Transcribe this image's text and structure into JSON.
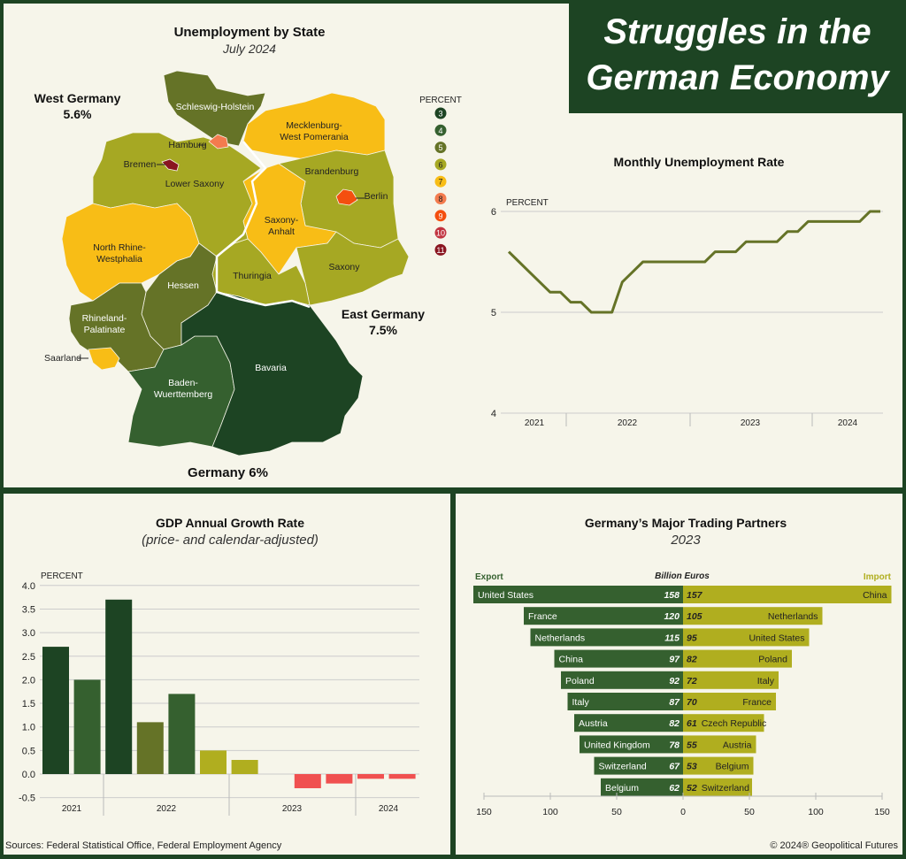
{
  "header": {
    "title_line1": "Struggles in the",
    "title_line2": "German Economy"
  },
  "map": {
    "title": "Unemployment by State",
    "subtitle": "July 2024",
    "legend_title": "PERCENT",
    "legend": [
      {
        "v": "3",
        "c": "#1d4423"
      },
      {
        "v": "4",
        "c": "#35602f"
      },
      {
        "v": "5",
        "c": "#657327"
      },
      {
        "v": "6",
        "c": "#a6a823"
      },
      {
        "v": "7",
        "c": "#f8bd16"
      },
      {
        "v": "8",
        "c": "#f37b4e"
      },
      {
        "v": "9",
        "c": "#f44f0f"
      },
      {
        "v": "10",
        "c": "#c1333f"
      },
      {
        "v": "11",
        "c": "#8a1520"
      }
    ],
    "west_label": "West Germany",
    "west_value": "5.6%",
    "east_label": "East Germany",
    "east_value": "7.5%",
    "total": "Germany 6%",
    "states": [
      {
        "name": "Schleswig-Holstein",
        "level": 5
      },
      {
        "name": "Mecklenburg-West Pomerania",
        "level": 7
      },
      {
        "name": "Brandenburg",
        "level": 6
      },
      {
        "name": "Berlin",
        "level": 9
      },
      {
        "name": "Saxony-Anhalt",
        "level": 7
      },
      {
        "name": "Saxony",
        "level": 6
      },
      {
        "name": "Thuringia",
        "level": 6
      },
      {
        "name": "Lower Saxony",
        "level": 6
      },
      {
        "name": "Hamburg",
        "level": 8
      },
      {
        "name": "Bremen",
        "level": 11
      },
      {
        "name": "North Rhine-Westphalia",
        "level": 7
      },
      {
        "name": "Hessen",
        "level": 5
      },
      {
        "name": "Rhineland-Palatinate",
        "level": 5
      },
      {
        "name": "Saarland",
        "level": 7
      },
      {
        "name": "Baden-Wuerttemberg",
        "level": 4
      },
      {
        "name": "Bavaria",
        "level": 3
      }
    ]
  },
  "chart_data": [
    {
      "type": "line",
      "title": "Monthly Unemployment Rate",
      "ylabel": "PERCENT",
      "ylim": [
        4,
        6
      ],
      "yticks": [
        "4",
        "5",
        "6"
      ],
      "x_labels": [
        "2021",
        "2022",
        "2023",
        "2024"
      ],
      "x_start": "2021-07",
      "x_end": "2024-07",
      "color": "#657327",
      "values": [
        5.6,
        5.5,
        5.4,
        5.3,
        5.2,
        5.2,
        5.1,
        5.1,
        5.0,
        5.0,
        5.0,
        5.3,
        5.4,
        5.5,
        5.5,
        5.5,
        5.5,
        5.5,
        5.5,
        5.5,
        5.6,
        5.6,
        5.6,
        5.7,
        5.7,
        5.7,
        5.7,
        5.8,
        5.8,
        5.9,
        5.9,
        5.9,
        5.9,
        5.9,
        5.9,
        6.0,
        6.0
      ]
    },
    {
      "type": "bar",
      "title": "GDP Annual Growth Rate",
      "subtitle": "(price- and calendar-adjusted)",
      "ylabel": "PERCENT",
      "ylim": [
        -0.5,
        4.0
      ],
      "yticks": [
        "4.0",
        "3.5",
        "3.0",
        "2.5",
        "2.0",
        "1.5",
        "1.0",
        "0.5",
        "0.0",
        "-0.5"
      ],
      "x_labels": [
        "2021",
        "2022",
        "2023",
        "2024"
      ],
      "values": [
        2.7,
        2.0,
        3.7,
        1.1,
        1.7,
        0.5,
        0.3,
        0.0,
        -0.3,
        -0.2,
        -0.1,
        -0.1
      ],
      "colors": [
        "#1d4423",
        "#35602f",
        "#1d4423",
        "#657327",
        "#35602f",
        "#b0ae1f",
        "#b0ae1f",
        "#b0ae1f",
        "#f05050",
        "#f05050",
        "#f05050",
        "#f05050"
      ]
    },
    {
      "type": "bar",
      "orientation": "horizontal-diverging",
      "title": "Germany’s Major Trading Partners",
      "subtitle": "2023",
      "unit": "Billion Euros",
      "left_label": "Export",
      "right_label": "Import",
      "xticks": [
        "150",
        "100",
        "50",
        "0",
        "50",
        "100",
        "150"
      ],
      "export_color": "#35602f",
      "import_color": "#b0ae1f",
      "exports": [
        {
          "c": "United States",
          "v": 158
        },
        {
          "c": "France",
          "v": 120
        },
        {
          "c": "Netherlands",
          "v": 115
        },
        {
          "c": "China",
          "v": 97
        },
        {
          "c": "Poland",
          "v": 92
        },
        {
          "c": "Italy",
          "v": 87
        },
        {
          "c": "Austria",
          "v": 82
        },
        {
          "c": "United Kingdom",
          "v": 78
        },
        {
          "c": "Switzerland",
          "v": 67
        },
        {
          "c": "Belgium",
          "v": 62
        }
      ],
      "imports": [
        {
          "c": "China",
          "v": 157
        },
        {
          "c": "Netherlands",
          "v": 105
        },
        {
          "c": "United States",
          "v": 95
        },
        {
          "c": "Poland",
          "v": 82
        },
        {
          "c": "Italy",
          "v": 72
        },
        {
          "c": "France",
          "v": 70
        },
        {
          "c": "Czech Republic",
          "v": 61
        },
        {
          "c": "Austria",
          "v": 55
        },
        {
          "c": "Belgium",
          "v": 53
        },
        {
          "c": "Switzerland",
          "v": 52
        }
      ]
    }
  ],
  "footer": {
    "sources": "Sources: Federal Statistical Office, Federal Employment Agency",
    "copyright": "© 2024® Geopolitical Futures"
  }
}
